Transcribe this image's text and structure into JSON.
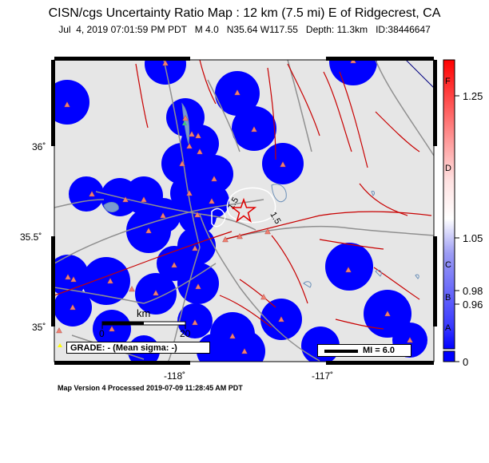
{
  "title": "CISN/cgs Uncertainty Ratio Map : 12 km (7.5 mi) E of Ridgecrest, CA",
  "subtitle": "Jul  4, 2019 07:01:59 PM PDT   M 4.0   N35.64 W117.55   Depth: 11.3km   ID:38446647",
  "footer": "Map Version 4 Processed 2019-07-09 11:28:45 AM PDT",
  "grade_label": "GRADE: - (Mean sigma: -)",
  "mi_label": "MI = 6.0",
  "contour_labels": [
    "1.5",
    "1.5"
  ],
  "scale_bar": {
    "unit": "km",
    "start": "0",
    "end": "20"
  },
  "lat_labels": [
    "36˚",
    "35.5˚",
    "35˚"
  ],
  "lon_labels": [
    "-118˚",
    "-117˚"
  ],
  "colorbar": {
    "letters": [
      "F",
      "D",
      "C",
      "B",
      "A"
    ],
    "values": [
      "1.25",
      "1.05",
      "0.98",
      "0.96",
      "0"
    ]
  },
  "colors": {
    "background": "#e6e6e6",
    "uncertainty_blue": "#0000ff",
    "station_marker": "#f08070",
    "fault_line": "#c80000",
    "road": "#909090",
    "epicenter": "#e00000"
  }
}
